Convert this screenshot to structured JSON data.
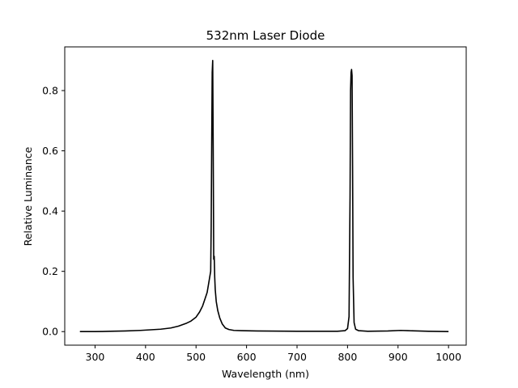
{
  "chart_data": {
    "type": "line",
    "title": "532nm Laser Diode",
    "xlabel": "Wavelength (nm)",
    "ylabel": "Relative Luminance",
    "xlim": [
      240,
      1035
    ],
    "ylim": [
      -0.045,
      0.945
    ],
    "x_ticks": [
      300,
      400,
      500,
      600,
      700,
      800,
      900,
      1000
    ],
    "y_ticks": [
      0.0,
      0.2,
      0.4,
      0.6,
      0.8
    ],
    "grid": false,
    "legend": "none",
    "line_color": "#000000",
    "series": [
      {
        "x": [
          270,
          300,
          330,
          360,
          390,
          410,
          430,
          450,
          465,
          480,
          490,
          500,
          507,
          513,
          518,
          522,
          525,
          527,
          529,
          530,
          531,
          532,
          533,
          534,
          535,
          536,
          537,
          538,
          540,
          543,
          547,
          552,
          558,
          565,
          575,
          590,
          620,
          700,
          780,
          795,
          800,
          803,
          805,
          806,
          807,
          808,
          809,
          810,
          811,
          813,
          816,
          822,
          840,
          880,
          905,
          920,
          960,
          1000
        ],
        "y": [
          0.0,
          0.0,
          0.001,
          0.002,
          0.004,
          0.006,
          0.008,
          0.012,
          0.018,
          0.027,
          0.035,
          0.048,
          0.065,
          0.085,
          0.11,
          0.13,
          0.16,
          0.18,
          0.2,
          0.35,
          0.62,
          0.86,
          0.9,
          0.6,
          0.24,
          0.25,
          0.18,
          0.14,
          0.1,
          0.07,
          0.045,
          0.025,
          0.012,
          0.007,
          0.004,
          0.003,
          0.002,
          0.001,
          0.001,
          0.003,
          0.01,
          0.05,
          0.45,
          0.8,
          0.86,
          0.87,
          0.85,
          0.55,
          0.18,
          0.03,
          0.008,
          0.003,
          0.001,
          0.002,
          0.004,
          0.003,
          0.001,
          0.0
        ]
      }
    ]
  }
}
